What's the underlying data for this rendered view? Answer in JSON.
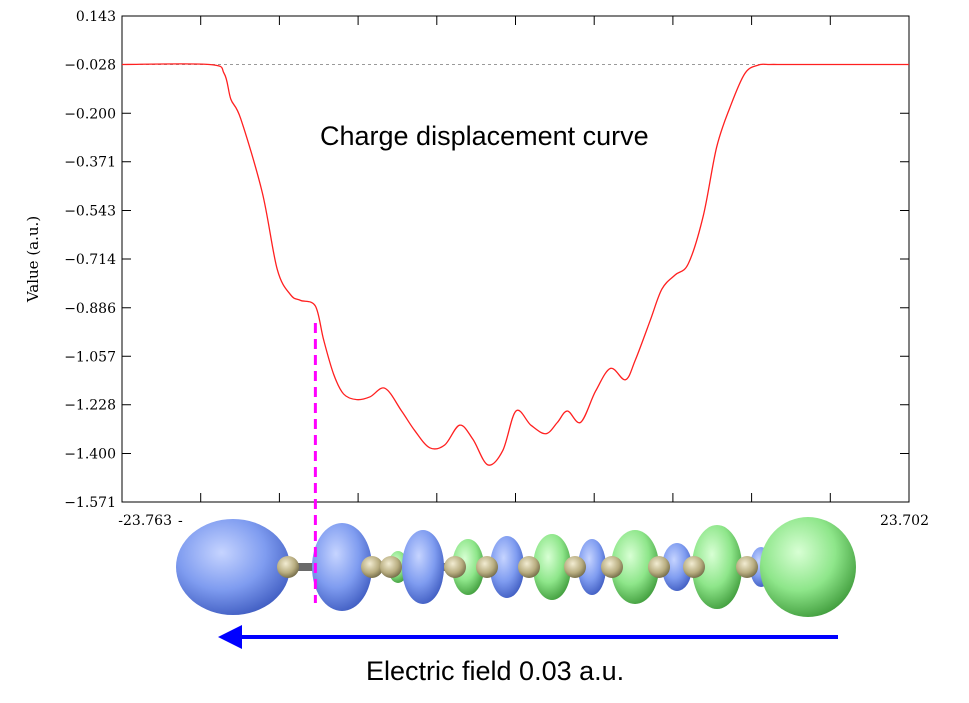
{
  "chart_data": {
    "type": "line",
    "title": "Charge displacement curve",
    "ylabel": "Value (a.u.)",
    "xlabel": "",
    "xlim": [
      -23.763,
      23.702
    ],
    "ylim": [
      -1.571,
      0.143
    ],
    "x_tick_labels": [
      "-23.763",
      "23.702"
    ],
    "y_ticks": [
      0.143,
      -0.028,
      -0.2,
      -0.371,
      -0.543,
      -0.714,
      -0.886,
      -1.057,
      -1.228,
      -1.4,
      -1.571
    ],
    "y_tick_labels": [
      "0.143",
      "−0.028",
      "−0.200",
      "−0.371",
      "−0.543",
      "−0.714",
      "−0.886",
      "−1.057",
      "−1.228",
      "−1.400",
      "−1.571"
    ],
    "reference_line_y": -0.028,
    "marker_line_x": -12.1,
    "grid": false,
    "series": [
      {
        "color": "#ff2020",
        "x": [
          -23.763,
          -18.5,
          -17.6,
          -17.2,
          -16.6,
          -15.3,
          -14.4,
          -13.6,
          -13.0,
          -12.1,
          -11.6,
          -11.0,
          -10.4,
          -9.6,
          -8.8,
          -7.9,
          -6.9,
          -6.1,
          -5.2,
          -4.3,
          -3.4,
          -2.6,
          -1.7,
          -0.8,
          0.0,
          0.9,
          1.8,
          2.5,
          3.1,
          3.9,
          4.8,
          5.7,
          6.6,
          7.2,
          8.1,
          8.8,
          9.6,
          10.4,
          11.3,
          12.1,
          12.9,
          13.8,
          14.6,
          15.3,
          16.0,
          16.7,
          17.4,
          18.1,
          18.5,
          23.702
        ],
        "y": [
          -0.028,
          -0.028,
          -0.06,
          -0.15,
          -0.22,
          -0.48,
          -0.75,
          -0.84,
          -0.86,
          -0.88,
          -1.0,
          -1.12,
          -1.19,
          -1.21,
          -1.2,
          -1.17,
          -1.25,
          -1.32,
          -1.38,
          -1.37,
          -1.3,
          -1.35,
          -1.44,
          -1.39,
          -1.25,
          -1.3,
          -1.33,
          -1.29,
          -1.25,
          -1.29,
          -1.18,
          -1.1,
          -1.14,
          -1.07,
          -0.93,
          -0.82,
          -0.77,
          -0.73,
          -0.56,
          -0.32,
          -0.18,
          -0.06,
          -0.03,
          -0.028,
          -0.028,
          -0.028,
          -0.028,
          -0.028,
          -0.028,
          -0.028
        ]
      }
    ]
  },
  "annotation": {
    "arrow_label": "Electric field 0.03 a.u.",
    "arrow_color": "#0000ff"
  },
  "colors": {
    "curve": "#ff2020",
    "dashed_marker": "#ff00ff",
    "lobe_blue": "#7f9cf0",
    "lobe_green": "#8ee68a",
    "atom": "#b8ad80"
  }
}
